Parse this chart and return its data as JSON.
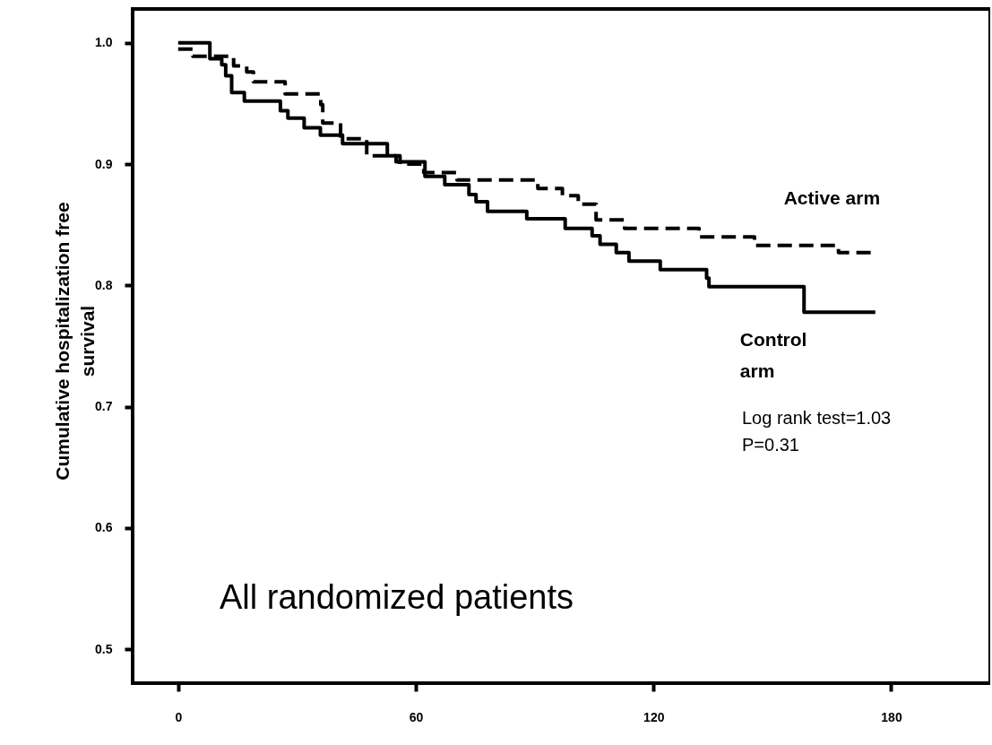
{
  "chart_data": {
    "type": "step",
    "ylabel": "Cumulative hospitalization free survival",
    "xlim": [
      -11.5,
      205
    ],
    "ylim": [
      0.472,
      1.028
    ],
    "xticks": [
      0,
      60,
      120,
      180
    ],
    "yticks": [
      0.5,
      0.6,
      0.7,
      0.8,
      0.9,
      {
        "value": 1,
        "label": "1.0"
      }
    ],
    "marker": "none",
    "series": [
      {
        "name": "Active arm",
        "color": "#000000",
        "line_style": "dashed",
        "x": [
          0,
          3.7,
          14,
          17.3,
          19,
          27,
          36,
          36.5,
          41,
          47.6,
          56,
          62,
          65.5,
          70.4,
          90.8,
          97,
          101,
          105.5,
          112.7,
          131.5,
          145.5,
          166.7,
          175
        ],
        "values": [
          0.995,
          0.989,
          0.981,
          0.976,
          0.968,
          0.958,
          0.949,
          0.934,
          0.921,
          0.907,
          0.9,
          0.893,
          0.893,
          0.887,
          0.88,
          0.874,
          0.867,
          0.854,
          0.847,
          0.84,
          0.833,
          0.827,
          0.827
        ]
      },
      {
        "name": "Control arm",
        "color": "#000000",
        "line_style": "solid",
        "x": [
          0,
          8,
          11,
          12,
          13.5,
          16.7,
          25.8,
          27.7,
          31.8,
          35.9,
          41.5,
          52.8,
          55,
          62.3,
          67.3,
          73.4,
          75.2,
          78.1,
          88,
          97.7,
          104.5,
          106.5,
          110.6,
          113.8,
          121.7,
          133.4,
          134,
          158,
          176
        ],
        "values": [
          1.0,
          0.987,
          0.982,
          0.973,
          0.959,
          0.952,
          0.944,
          0.938,
          0.93,
          0.924,
          0.917,
          0.907,
          0.902,
          0.89,
          0.883,
          0.875,
          0.869,
          0.861,
          0.855,
          0.847,
          0.841,
          0.834,
          0.827,
          0.82,
          0.813,
          0.806,
          0.799,
          0.778,
          0.778
        ]
      }
    ],
    "annotations": [
      "Log rank test=1.03\nP=0.31",
      "All randomized patients"
    ]
  }
}
